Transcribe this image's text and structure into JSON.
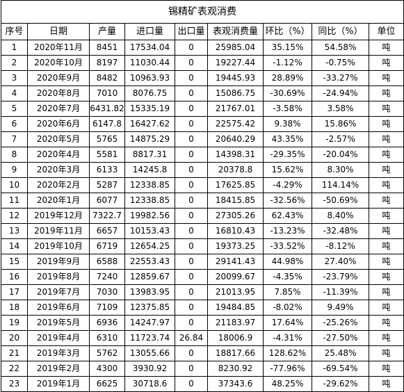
{
  "title": "锡精矿表观消费",
  "headers": [
    "序号",
    "日期",
    "产量",
    "进口量",
    "出口量",
    "表观消费量",
    "环比（%）",
    "同比（%）",
    "单位"
  ],
  "rows": [
    [
      "1",
      "2020年11月",
      "8451",
      "17534.04",
      "0",
      "25985.04",
      "35.15%",
      "54.58%",
      "吨"
    ],
    [
      "2",
      "2020年10月",
      "8197",
      "11030.44",
      "0",
      "19227.44",
      "-1.12%",
      "-0.75%",
      "吨"
    ],
    [
      "3",
      "2020年9月",
      "8482",
      "10963.93",
      "0",
      "19445.93",
      "28.89%",
      "-33.27%",
      "吨"
    ],
    [
      "4",
      "2020年8月",
      "7010",
      "8076.75",
      "0",
      "15086.75",
      "-30.69%",
      "-24.94%",
      "吨"
    ],
    [
      "5",
      "2020年7月",
      "6431.82",
      "15335.19",
      "0",
      "21767.01",
      "-3.58%",
      "3.58%",
      "吨"
    ],
    [
      "6",
      "2020年6月",
      "6147.8",
      "16427.62",
      "0",
      "22575.42",
      "9.38%",
      "15.86%",
      "吨"
    ],
    [
      "7",
      "2020年5月",
      "5765",
      "14875.29",
      "0",
      "20640.29",
      "43.35%",
      "-2.57%",
      "吨"
    ],
    [
      "8",
      "2020年4月",
      "5581",
      "8817.31",
      "0",
      "14398.31",
      "-29.35%",
      "-20.04%",
      "吨"
    ],
    [
      "9",
      "2020年3月",
      "6133",
      "14245.8",
      "0",
      "20378.8",
      "15.62%",
      "8.30%",
      "吨"
    ],
    [
      "10",
      "2020年2月",
      "5287",
      "12338.85",
      "0",
      "17625.85",
      "-4.29%",
      "114.14%",
      "吨"
    ],
    [
      "11",
      "2020年1月",
      "6077",
      "12338.85",
      "0",
      "18415.85",
      "-32.56%",
      "-50.69%",
      "吨"
    ],
    [
      "12",
      "2019年12月",
      "7322.7",
      "19982.56",
      "0",
      "27305.26",
      "62.43%",
      "8.40%",
      "吨"
    ],
    [
      "13",
      "2019年11月",
      "6657",
      "10153.43",
      "0",
      "16810.43",
      "-13.23%",
      "-32.48%",
      "吨"
    ],
    [
      "14",
      "2019年10月",
      "6719",
      "12654.25",
      "0",
      "19373.25",
      "-33.52%",
      "-8.12%",
      "吨"
    ],
    [
      "15",
      "2019年9月",
      "6588",
      "22553.43",
      "0",
      "29141.43",
      "44.98%",
      "27.40%",
      "吨"
    ],
    [
      "16",
      "2019年8月",
      "7240",
      "12859.67",
      "0",
      "20099.67",
      "-4.35%",
      "-23.79%",
      "吨"
    ],
    [
      "17",
      "2019年7月",
      "7030",
      "13983.95",
      "0",
      "21013.95",
      "7.85%",
      "-11.39%",
      "吨"
    ],
    [
      "18",
      "2019年6月",
      "7109",
      "12375.85",
      "0",
      "19484.85",
      "-8.02%",
      "9.49%",
      "吨"
    ],
    [
      "19",
      "2019年5月",
      "6936",
      "14247.97",
      "0",
      "21183.97",
      "17.64%",
      "-25.26%",
      "吨"
    ],
    [
      "20",
      "2019年4月",
      "6310",
      "11723.74",
      "26.84",
      "18006.9",
      "-4.31%",
      "-27.50%",
      "吨"
    ],
    [
      "21",
      "2019年3月",
      "5762",
      "13055.66",
      "0",
      "18817.66",
      "128.62%",
      "25.48%",
      "吨"
    ],
    [
      "22",
      "2019年2月",
      "4300",
      "3930.92",
      "0",
      "8230.92",
      "-77.96%",
      "-69.54%",
      "吨"
    ],
    [
      "23",
      "2019年1月",
      "6625",
      "30718.6",
      "0",
      "37343.6",
      "48.25%",
      "-29.62%",
      "吨"
    ]
  ]
}
